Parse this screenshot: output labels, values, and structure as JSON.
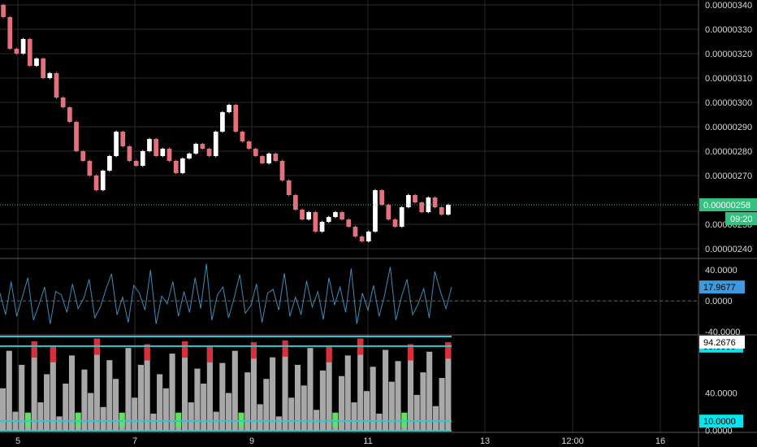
{
  "colors": {
    "background": "#000000",
    "grid": "#2a2a2a",
    "separator": "#5a5a5a",
    "candle_up": "#ffffff",
    "candle_down": "#e3707a",
    "current_price": "#33c17f",
    "oscillator_line": "#3d8cb8",
    "oscillator_badge": "#3d9ae0",
    "stoch_bars": "#a8a8a8",
    "stoch_red": "#d8303a",
    "stoch_green": "#5ee35e",
    "stoch_band": "#2ec9cf",
    "stoch_badge": "#00e5ee"
  },
  "chart_data": [
    {
      "type": "candlestick",
      "panel": "price",
      "ylim": [
        2.36e-06,
        3.42e-06
      ],
      "y_ticks": [
        "0.00000340",
        "0.00000330",
        "0.00000320",
        "0.00000310",
        "0.00000300",
        "0.00000290",
        "0.00000280",
        "0.00000270",
        "0.00000250",
        "0.00000240"
      ],
      "current_price": "0.00000258",
      "countdown": "09:20",
      "series": [
        {
          "close": [
            3.35e-06,
            3.22e-06,
            3.2e-06,
            3.26e-06,
            3.15e-06,
            3.18e-06,
            3.1e-06,
            3.12e-06,
            3.02e-06,
            2.98e-06,
            2.92e-06,
            2.8e-06,
            2.76e-06,
            2.7e-06,
            2.64e-06,
            2.72e-06,
            2.78e-06,
            2.88e-06,
            2.82e-06,
            2.76e-06,
            2.74e-06,
            2.8e-06,
            2.85e-06,
            2.78e-06,
            2.81e-06,
            2.76e-06,
            2.71e-06,
            2.77e-06,
            2.79e-06,
            2.83e-06,
            2.81e-06,
            2.78e-06,
            2.88e-06,
            2.96e-06,
            2.99e-06,
            2.88e-06,
            2.84e-06,
            2.81e-06,
            2.78e-06,
            2.75e-06,
            2.79e-06,
            2.76e-06,
            2.68e-06,
            2.62e-06,
            2.56e-06,
            2.52e-06,
            2.55e-06,
            2.47e-06,
            2.51e-06,
            2.53e-06,
            2.55e-06,
            2.52e-06,
            2.49e-06,
            2.45e-06,
            2.43e-06,
            2.47e-06,
            2.64e-06,
            2.58e-06,
            2.52e-06,
            2.49e-06,
            2.57e-06,
            2.62e-06,
            2.59e-06,
            2.55e-06,
            2.61e-06,
            2.57e-06,
            2.54e-06,
            2.58e-06
          ]
        }
      ]
    },
    {
      "type": "line",
      "panel": "oscillator",
      "ylim": [
        -44,
        55
      ],
      "y_ticks": [
        "40.0000",
        "0.0000",
        "-40.0000"
      ],
      "current_value": "17.9677",
      "series": [
        {
          "values": [
            10,
            -18,
            25,
            -20,
            5,
            30,
            -25,
            -5,
            18,
            -30,
            12,
            8,
            -15,
            22,
            -10,
            3,
            28,
            -22,
            -8,
            15,
            35,
            -18,
            5,
            -28,
            20,
            10,
            -12,
            40,
            -30,
            6,
            -4,
            25,
            -20,
            12,
            -15,
            30,
            -10,
            48,
            -25,
            8,
            18,
            -22,
            4,
            34,
            -16,
            -6,
            22,
            -28,
            10,
            15,
            -12,
            36,
            -20,
            5,
            -18,
            26,
            -8,
            12,
            -24,
            30,
            -5,
            18,
            -15,
            42,
            -30,
            10,
            -12,
            20,
            -20,
            8,
            44,
            -25,
            5,
            28,
            -18,
            -4,
            16,
            -22,
            38,
            12,
            -10,
            18
          ]
        }
      ]
    },
    {
      "type": "bar",
      "panel": "stochastic",
      "ylim": [
        -2,
        102
      ],
      "y_ticks": [
        "40.0000",
        "0.0000"
      ],
      "bands": [
        "90.0000",
        "10.0000"
      ],
      "current_value": "94.2676",
      "series": [
        {
          "values": [
            45,
            85,
            20,
            70,
            10,
            95,
            30,
            60,
            90,
            15,
            50,
            80,
            5,
            65,
            40,
            98,
            25,
            75,
            55,
            12,
            88,
            35,
            70,
            92,
            18,
            60,
            45,
            82,
            8,
            95,
            30,
            66,
            50,
            90,
            20,
            72,
            40,
            85,
            10,
            62,
            94,
            28,
            55,
            78,
            15,
            96,
            35,
            70,
            48,
            88,
            22,
            64,
            90,
            12,
            58,
            80,
            30,
            98,
            42,
            68,
            18,
            86,
            52,
            74,
            8,
            92,
            38,
            62,
            84,
            26,
            56,
            94
          ]
        }
      ]
    }
  ],
  "x_axis": {
    "labels": [
      "5",
      "7",
      "9",
      "11",
      "13",
      "12:00",
      "16"
    ]
  }
}
